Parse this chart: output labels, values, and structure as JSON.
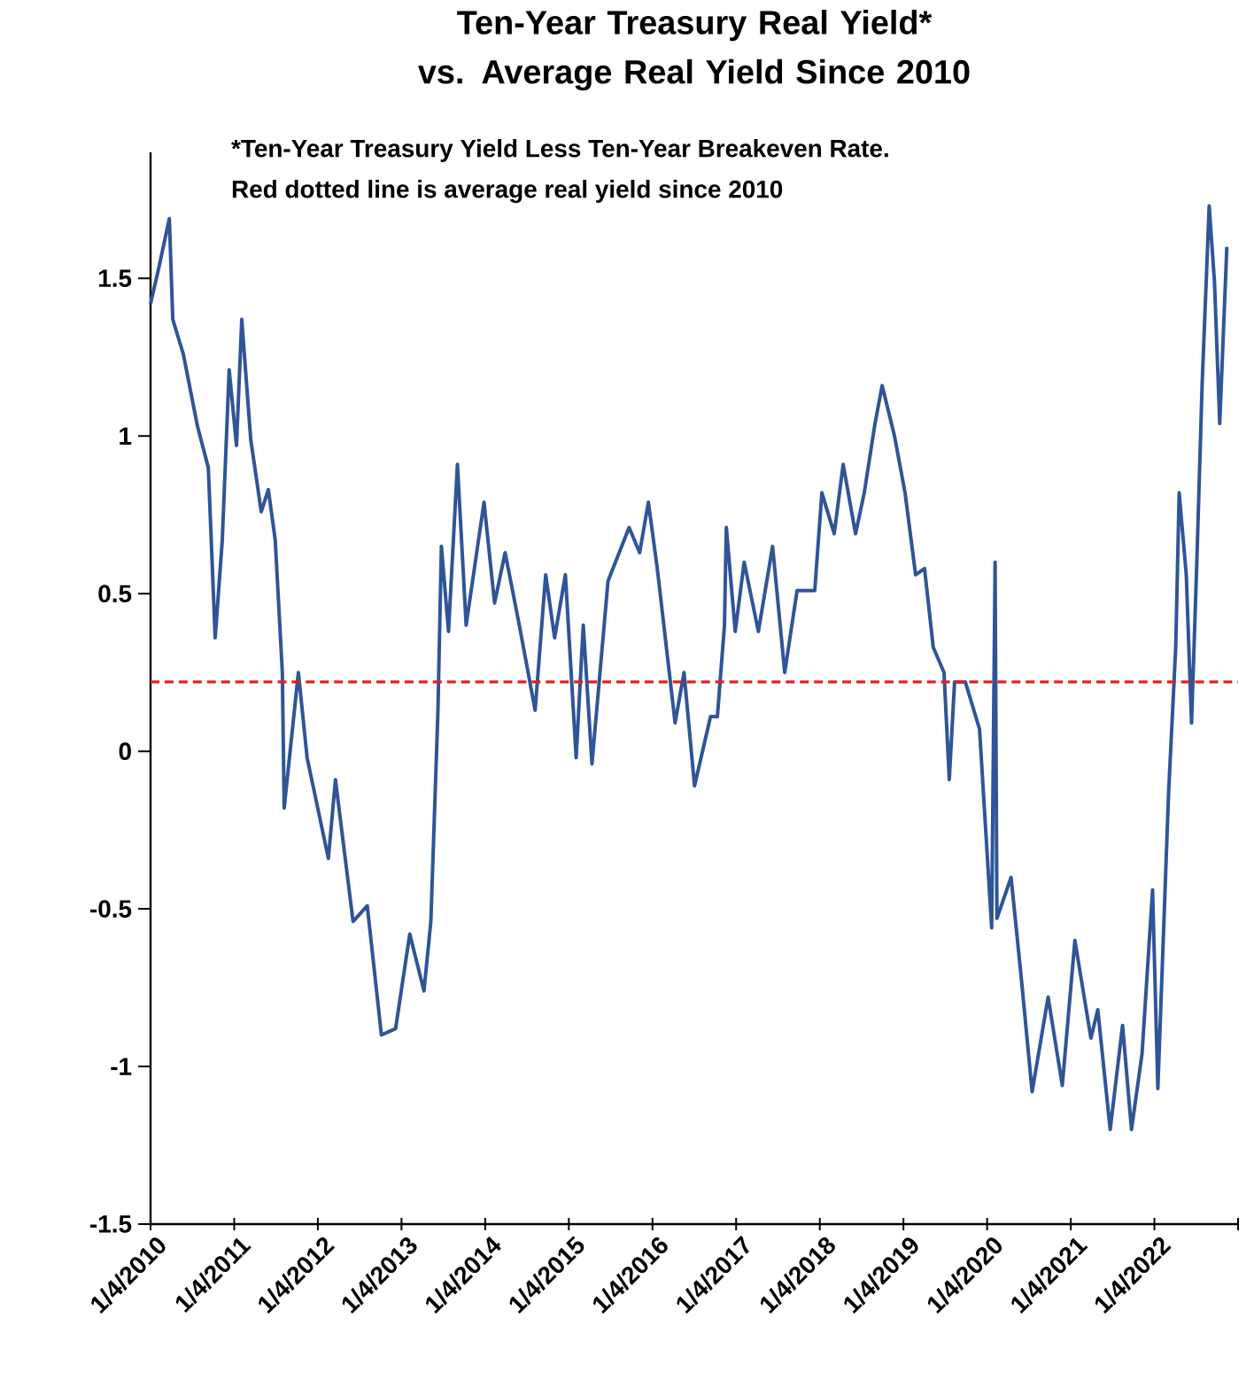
{
  "chart_data": {
    "type": "line",
    "title": "Ten-Year Treasury Real Yield*\nvs. Average Real Yield Since 2010",
    "annotations": [
      "*Ten-Year Treasury Yield Less Ten-Year Breakeven Rate.",
      "Red dotted line is average real yield since 2010"
    ],
    "x": [
      "2010-01-04",
      "2010-02-08",
      "2010-03-27",
      "2010-04-11",
      "2010-05-27",
      "2010-07-28",
      "2010-09-13",
      "2010-10-13",
      "2010-11-13",
      "2010-12-13",
      "2011-01-14",
      "2011-02-06",
      "2011-03-17",
      "2011-05-02",
      "2011-06-02",
      "2011-07-02",
      "2011-08-02",
      "2011-08-10",
      "2011-10-11",
      "2011-11-18",
      "2012-02-19",
      "2012-03-21",
      "2012-06-06",
      "2012-08-07",
      "2012-10-08",
      "2012-12-09",
      "2013-02-09",
      "2013-04-12",
      "2013-05-12",
      "2013-06-12",
      "2013-06-27",
      "2013-07-28",
      "2013-09-05",
      "2013-10-13",
      "2013-12-30",
      "2014-02-14",
      "2014-04-01",
      "2014-06-02",
      "2014-08-10",
      "2014-09-25",
      "2014-11-03",
      "2014-12-20",
      "2015-02-05",
      "2015-03-08",
      "2015-04-15",
      "2015-06-24",
      "2015-09-24",
      "2015-11-09",
      "2015-12-17",
      "2016-01-25",
      "2016-04-12",
      "2016-05-21",
      "2016-07-06",
      "2016-09-14",
      "2016-10-14",
      "2016-11-14",
      "2016-11-22",
      "2016-12-31",
      "2017-02-08",
      "2017-04-11",
      "2017-06-12",
      "2017-08-04",
      "2017-09-27",
      "2017-12-13",
      "2018-01-13",
      "2018-03-08",
      "2018-04-16",
      "2018-06-09",
      "2018-07-17",
      "2018-09-02",
      "2018-10-03",
      "2018-11-26",
      "2019-01-11",
      "2019-02-26",
      "2019-04-06",
      "2019-05-14",
      "2019-06-30",
      "2019-07-23",
      "2019-08-15",
      "2019-10-01",
      "2019-12-02",
      "2020-01-24",
      "2020-02-08",
      "2020-02-16",
      "2020-04-18",
      "2020-06-03",
      "2020-07-19",
      "2020-09-27",
      "2020-11-28",
      "2021-01-22",
      "2021-04-02",
      "2021-05-02",
      "2021-06-25",
      "2021-08-18",
      "2021-09-26",
      "2021-11-11",
      "2021-12-27",
      "2022-01-19",
      "2022-03-07",
      "2022-04-07",
      "2022-04-22",
      "2022-05-23",
      "2022-06-15",
      "2022-07-08",
      "2022-07-31",
      "2022-08-31",
      "2022-09-23",
      "2022-10-16",
      "2022-11-16"
    ],
    "series": [
      {
        "color": "#2f5597",
        "values": [
          1.42,
          1.53,
          1.69,
          1.37,
          1.26,
          1.03,
          0.9,
          0.36,
          0.67,
          1.21,
          0.97,
          1.37,
          0.99,
          0.76,
          0.83,
          0.67,
          0.25,
          -0.18,
          0.25,
          -0.02,
          -0.34,
          -0.09,
          -0.54,
          -0.49,
          -0.9,
          -0.88,
          -0.58,
          -0.76,
          -0.54,
          0.13,
          0.65,
          0.38,
          0.91,
          0.4,
          0.79,
          0.47,
          0.63,
          0.4,
          0.13,
          0.56,
          0.36,
          0.56,
          -0.02,
          0.4,
          -0.04,
          0.54,
          0.71,
          0.63,
          0.79,
          0.58,
          0.09,
          0.25,
          -0.11,
          0.11,
          0.11,
          0.4,
          0.71,
          0.38,
          0.6,
          0.38,
          0.65,
          0.25,
          0.51,
          0.51,
          0.82,
          0.69,
          0.91,
          0.69,
          0.82,
          1.04,
          1.16,
          1.0,
          0.82,
          0.56,
          0.58,
          0.33,
          0.25,
          -0.09,
          0.22,
          0.22,
          0.07,
          -0.56,
          0.6,
          -0.53,
          -0.4,
          -0.73,
          -1.08,
          -0.78,
          -1.06,
          -0.6,
          -0.91,
          -0.82,
          -1.2,
          -0.87,
          -1.2,
          -0.96,
          -0.44,
          -1.07,
          -0.13,
          0.33,
          0.82,
          0.56,
          0.09,
          0.6,
          1.16,
          1.73,
          1.49,
          1.04,
          1.6
        ]
      }
    ],
    "xlim": [
      "2010-01-04",
      "2023-01-04"
    ],
    "xticks": [
      {
        "value": "2010-01-04",
        "label": "1/4/2010"
      },
      {
        "value": "2011-01-04",
        "label": "1/4/2011"
      },
      {
        "value": "2012-01-04",
        "label": "1/4/2012"
      },
      {
        "value": "2013-01-04",
        "label": "1/4/2013"
      },
      {
        "value": "2014-01-04",
        "label": "1/4/2014"
      },
      {
        "value": "2015-01-04",
        "label": "1/4/2015"
      },
      {
        "value": "2016-01-04",
        "label": "1/4/2016"
      },
      {
        "value": "2017-01-04",
        "label": "1/4/2017"
      },
      {
        "value": "2018-01-04",
        "label": "1/4/2018"
      },
      {
        "value": "2019-01-04",
        "label": "1/4/2019"
      },
      {
        "value": "2020-01-04",
        "label": "1/4/2020"
      },
      {
        "value": "2021-01-04",
        "label": "1/4/2021"
      },
      {
        "value": "2022-01-04",
        "label": "1/4/2022"
      },
      {
        "value": "2023-01-04",
        "label": null
      }
    ],
    "ylim": [
      -1.5,
      1.9
    ],
    "yticks": [
      -1.5,
      -1,
      -0.5,
      0,
      0.5,
      1,
      1.5
    ],
    "ref_lines": [
      {
        "axis": "y",
        "value": 0.22,
        "color": "#e02020",
        "line_style": "dashed"
      }
    ],
    "grid": false,
    "marker": "none",
    "line_style": "solid"
  }
}
